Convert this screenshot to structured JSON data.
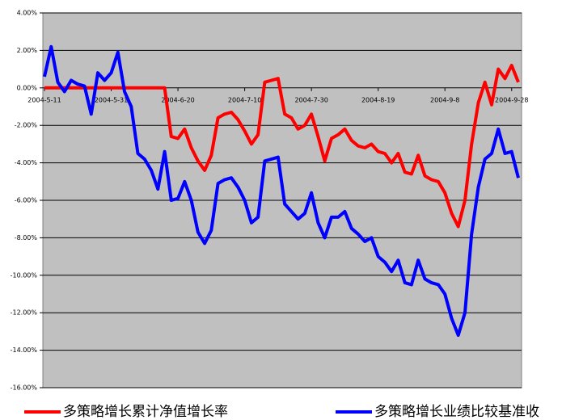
{
  "chart_data": {
    "type": "line",
    "x": [
      "2004-5-11",
      "2004-5-13",
      "2004-5-15",
      "2004-5-17",
      "2004-5-19",
      "2004-5-21",
      "2004-5-23",
      "2004-5-25",
      "2004-5-27",
      "2004-5-29",
      "2004-5-31",
      "2004-6-2",
      "2004-6-4",
      "2004-6-6",
      "2004-6-8",
      "2004-6-10",
      "2004-6-12",
      "2004-6-14",
      "2004-6-16",
      "2004-6-18",
      "2004-6-20",
      "2004-6-22",
      "2004-6-24",
      "2004-6-26",
      "2004-6-28",
      "2004-6-30",
      "2004-7-2",
      "2004-7-4",
      "2004-7-6",
      "2004-7-8",
      "2004-7-10",
      "2004-7-12",
      "2004-7-14",
      "2004-7-16",
      "2004-7-18",
      "2004-7-20",
      "2004-7-22",
      "2004-7-24",
      "2004-7-26",
      "2004-7-28",
      "2004-7-30",
      "2004-8-1",
      "2004-8-3",
      "2004-8-5",
      "2004-8-7",
      "2004-8-9",
      "2004-8-11",
      "2004-8-13",
      "2004-8-15",
      "2004-8-17",
      "2004-8-19",
      "2004-8-21",
      "2004-8-23",
      "2004-8-25",
      "2004-8-27",
      "2004-8-29",
      "2004-8-31",
      "2004-9-2",
      "2004-9-4",
      "2004-9-6",
      "2004-9-8",
      "2004-9-10",
      "2004-9-12",
      "2004-9-14",
      "2004-9-16",
      "2004-9-18",
      "2004-9-20",
      "2004-9-22",
      "2004-9-24",
      "2004-9-26",
      "2004-9-28",
      "2004-9-30"
    ],
    "series": [
      {
        "name": "多策略增长累计净值增长率",
        "color": "#ff0000",
        "values": [
          0,
          0,
          0,
          0,
          0,
          0,
          0,
          0,
          0,
          0,
          0,
          0,
          0,
          0,
          0,
          0,
          0,
          0,
          0,
          -2.6,
          -2.7,
          -2.2,
          -3.2,
          -3.9,
          -4.4,
          -3.6,
          -1.6,
          -1.4,
          -1.3,
          -1.7,
          -2.3,
          -3.0,
          -2.5,
          0.3,
          0.4,
          0.5,
          -1.4,
          -1.6,
          -2.2,
          -2.0,
          -1.4,
          -2.6,
          -3.9,
          -2.7,
          -2.5,
          -2.2,
          -2.8,
          -3.1,
          -3.2,
          -3.0,
          -3.4,
          -3.5,
          -4.0,
          -3.5,
          -4.5,
          -4.6,
          -3.6,
          -4.7,
          -4.9,
          -5.0,
          -5.6,
          -6.7,
          -7.4,
          -6.0,
          -3.0,
          -0.8,
          0.3,
          -0.9,
          1.0,
          0.5,
          1.2,
          0.3
        ]
      },
      {
        "name": "多策略增长业绩比较基准收",
        "color": "#0000ff",
        "values": [
          0.6,
          2.2,
          0.3,
          -0.2,
          0.4,
          0.2,
          0.1,
          -1.4,
          0.8,
          0.4,
          0.8,
          1.9,
          -0.2,
          -1.0,
          -3.5,
          -3.8,
          -4.4,
          -5.4,
          -3.4,
          -6.0,
          -5.9,
          -5.0,
          -6.0,
          -7.7,
          -8.3,
          -7.6,
          -5.1,
          -4.9,
          -4.8,
          -5.3,
          -6.0,
          -7.2,
          -6.9,
          -3.9,
          -3.8,
          -3.7,
          -6.2,
          -6.6,
          -7.0,
          -6.7,
          -5.6,
          -7.2,
          -8.0,
          -6.9,
          -6.9,
          -6.6,
          -7.5,
          -7.8,
          -8.2,
          -8.0,
          -9.0,
          -9.3,
          -9.8,
          -9.2,
          -10.4,
          -10.5,
          -9.2,
          -10.2,
          -10.4,
          -10.5,
          -11.0,
          -12.3,
          -13.2,
          -12.0,
          -7.8,
          -5.3,
          -3.8,
          -3.5,
          -2.2,
          -3.5,
          -3.4,
          -4.8
        ]
      }
    ],
    "xlim": [
      "2004-5-11",
      "2004-9-30"
    ],
    "xticks": [
      "2004-5-11",
      "2004-5-31",
      "2004-6-20",
      "2004-7-10",
      "2004-7-30",
      "2004-8-19",
      "2004-9-8",
      "2004-9-28"
    ],
    "ylim": [
      -16,
      4
    ],
    "yticks": [
      {
        "value": 4,
        "label": "4.00%"
      },
      {
        "value": 2,
        "label": "2.00%"
      },
      {
        "value": 0,
        "label": "0.00%"
      },
      {
        "value": -2,
        "label": "-2.00%"
      },
      {
        "value": -4,
        "label": "-4.00%"
      },
      {
        "value": -6,
        "label": "-6.00%"
      },
      {
        "value": -8,
        "label": "-8.00%"
      },
      {
        "value": -10,
        "label": "-10.00%"
      },
      {
        "value": -12,
        "label": "-12.00%"
      },
      {
        "value": -14,
        "label": "-14.00%"
      },
      {
        "value": -16,
        "label": "-16.00%"
      }
    ],
    "grid": true,
    "background": "#c0c0c0",
    "legend": "bottom"
  }
}
